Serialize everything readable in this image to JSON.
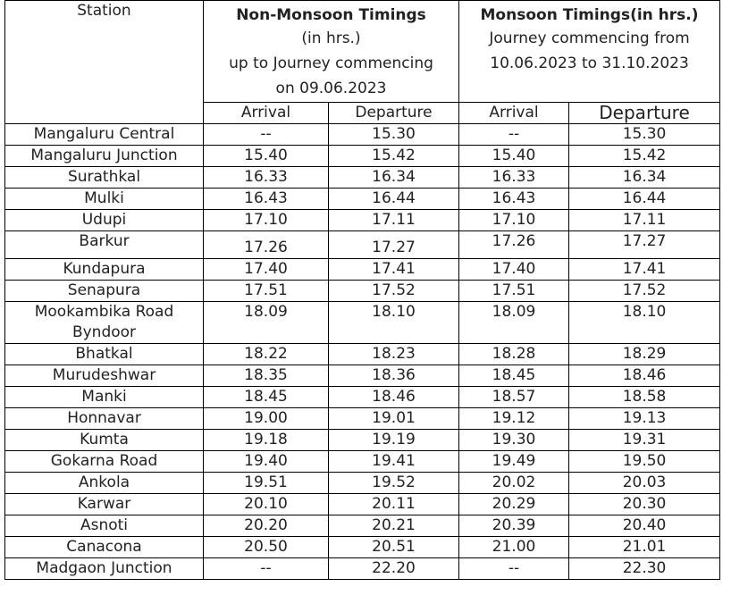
{
  "header": {
    "station_label": "Station",
    "non_monsoon": {
      "title": "Non-Monsoon Timings",
      "line2": "(in hrs.)",
      "line3": "up to Journey commencing",
      "line4": "on 09.06.2023"
    },
    "monsoon": {
      "title": "Monsoon Timings(in hrs.)",
      "line2": "Journey commencing from",
      "line3": "10.06.2023 to 31.10.2023"
    },
    "arrival_label": "Arrival",
    "departure_label": "Departure"
  },
  "rows": [
    {
      "station": "Mangaluru Central",
      "station2": "",
      "nm_arr": "--",
      "nm_dep": "15.30",
      "m_arr": "--",
      "m_dep": "15.30",
      "bold_nm_arr": false,
      "bold_nm_dep": true
    },
    {
      "station": "Mangaluru Junction",
      "station2": "",
      "nm_arr": "15.40",
      "nm_dep": "15.42",
      "m_arr": "15.40",
      "m_dep": "15.42",
      "bold_nm_arr": true,
      "bold_nm_dep": true
    },
    {
      "station": "Surathkal",
      "station2": "",
      "nm_arr": "16.33",
      "nm_dep": "16.34",
      "m_arr": "16.33",
      "m_dep": "16.34"
    },
    {
      "station": "Mulki",
      "station2": "",
      "nm_arr": "16.43",
      "nm_dep": "16.44",
      "m_arr": "16.43",
      "m_dep": "16.44"
    },
    {
      "station": "Udupi",
      "station2": "",
      "nm_arr": "17.10",
      "nm_dep": "17.11",
      "m_arr": "17.10",
      "m_dep": "17.11"
    },
    {
      "station": "Barkur",
      "station2": "",
      "nm_arr": "17.26",
      "nm_dep": "17.27",
      "m_arr": "17.26",
      "m_dep": "17.27"
    },
    {
      "station": "Kundapura",
      "station2": "",
      "nm_arr": "17.40",
      "nm_dep": "17.41",
      "m_arr": "17.40",
      "m_dep": "17.41"
    },
    {
      "station": "Senapura",
      "station2": "",
      "nm_arr": "17.51",
      "nm_dep": "17.52",
      "m_arr": "17.51",
      "m_dep": "17.52"
    },
    {
      "station": "Mookambika Road",
      "station2": "Byndoor",
      "nm_arr": "18.09",
      "nm_dep": "18.10",
      "m_arr": "18.09",
      "m_dep": "18.10"
    },
    {
      "station": "Bhatkal",
      "station2": "",
      "nm_arr": "18.22",
      "nm_dep": "18.23",
      "m_arr": "18.28",
      "m_dep": "18.29"
    },
    {
      "station": "Murudeshwar",
      "station2": "",
      "nm_arr": "18.35",
      "nm_dep": "18.36",
      "m_arr": "18.45",
      "m_dep": "18.46"
    },
    {
      "station": "Manki",
      "station2": "",
      "nm_arr": "18.45",
      "nm_dep": "18.46",
      "m_arr": "18.57",
      "m_dep": "18.58"
    },
    {
      "station": "Honnavar",
      "station2": "",
      "nm_arr": "19.00",
      "nm_dep": "19.01",
      "m_arr": "19.12",
      "m_dep": "19.13"
    },
    {
      "station": "Kumta",
      "station2": "",
      "nm_arr": "19.18",
      "nm_dep": "19.19",
      "m_arr": "19.30",
      "m_dep": "19.31"
    },
    {
      "station": "Gokarna Road",
      "station2": "",
      "nm_arr": "19.40",
      "nm_dep": "19.41",
      "m_arr": "19.49",
      "m_dep": "19.50"
    },
    {
      "station": "Ankola",
      "station2": "",
      "nm_arr": "19.51",
      "nm_dep": "19.52",
      "m_arr": "20.02",
      "m_dep": "20.03"
    },
    {
      "station": "Karwar",
      "station2": "",
      "nm_arr": "20.10",
      "nm_dep": "20.11",
      "m_arr": "20.29",
      "m_dep": "20.30"
    },
    {
      "station": "Asnoti",
      "station2": "",
      "nm_arr": "20.20",
      "nm_dep": "20.21",
      "m_arr": "20.39",
      "m_dep": "20.40"
    },
    {
      "station": "Canacona",
      "station2": "",
      "nm_arr": "20.50",
      "nm_dep": "20.51",
      "m_arr": "21.00",
      "m_dep": "21.01"
    },
    {
      "station": "Madgaon Junction",
      "station2": "",
      "nm_arr": "--",
      "nm_dep": "22.20",
      "m_arr": "--",
      "m_dep": "22.30"
    }
  ]
}
